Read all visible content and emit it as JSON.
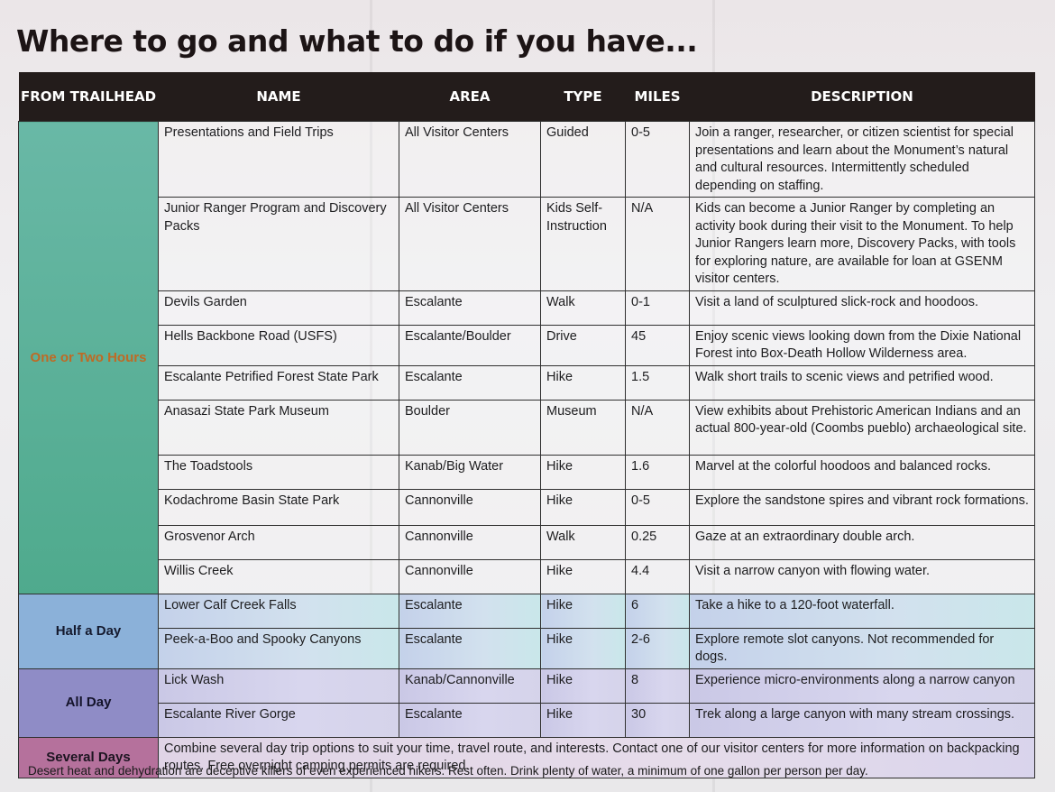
{
  "title": "Where to go and what to do if you have...",
  "headers": {
    "from_trailhead": "FROM TRAILHEAD",
    "name": "NAME",
    "area": "AREA",
    "type": "TYPE",
    "miles": "MILES",
    "description": "DESCRIPTION"
  },
  "groups": {
    "one_or_two_hours": "One or Two Hours",
    "half_a_day": "Half a Day",
    "all_day": "All Day",
    "several_days": "Several Days"
  },
  "rows": [
    {
      "name": "Presentations and Field Trips",
      "area": "All Visitor Centers",
      "type": "Guided",
      "miles": "0-5",
      "description": "Join a ranger, researcher, or citizen scientist for special presentations and learn about the Monument’s natural and cultural resources. Intermittently scheduled depending on staffing."
    },
    {
      "name": "Junior Ranger Program and Discovery Packs",
      "area": "All Visitor Centers",
      "type": "Kids Self-Instruction",
      "miles": "N/A",
      "description": "Kids can become a Junior Ranger by completing an activity book during their visit to the Monument. To help Junior Rangers learn more, Discovery Packs, with tools for exploring nature, are available for loan at GSENM visitor centers."
    },
    {
      "name": "Devils Garden",
      "area": "Escalante",
      "type": "Walk",
      "miles": "0-1",
      "description": "Visit a land of sculptured slick-rock and hoodoos."
    },
    {
      "name": "Hells Backbone Road (USFS)",
      "area": "Escalante/Boulder",
      "type": "Drive",
      "miles": "45",
      "description": "Enjoy scenic views looking down from the Dixie National Forest into Box-Death Hollow Wilderness area."
    },
    {
      "name": "Escalante Petrified Forest State Park",
      "area": "Escalante",
      "type": "Hike",
      "miles": "1.5",
      "description": "Walk short trails to scenic views and petrified wood."
    },
    {
      "name": "Anasazi State Park Museum",
      "area": "Boulder",
      "type": "Museum",
      "miles": "N/A",
      "description": "View exhibits about Prehistoric American Indians and an actual 800-year-old (Coombs pueblo) archaeological site."
    },
    {
      "name": "The Toadstools",
      "area": "Kanab/Big Water",
      "type": "Hike",
      "miles": "1.6",
      "description": "Marvel at the colorful hoodoos and balanced rocks."
    },
    {
      "name": "Kodachrome Basin State Park",
      "area": "Cannonville",
      "type": "Hike",
      "miles": "0-5",
      "description": "Explore the sandstone spires and vibrant rock formations."
    },
    {
      "name": "Grosvenor Arch",
      "area": "Cannonville",
      "type": "Walk",
      "miles": "0.25",
      "description": "Gaze at an extraordinary double arch."
    },
    {
      "name": "Willis Creek",
      "area": "Cannonville",
      "type": "Hike",
      "miles": "4.4",
      "description": "Visit a narrow canyon with flowing water."
    },
    {
      "name": "Lower Calf Creek Falls",
      "area": "Escalante",
      "type": "Hike",
      "miles": "6",
      "description": "Take a hike to a 120-foot waterfall."
    },
    {
      "name": "Peek-a-Boo and Spooky Canyons",
      "area": "Escalante",
      "type": "Hike",
      "miles": "2-6",
      "description": "Explore remote slot canyons. Not recommended for dogs."
    },
    {
      "name": "Lick Wash",
      "area": "Kanab/Cannonville",
      "type": "Hike",
      "miles": "8",
      "description": "Experience micro-environments along a narrow canyon"
    },
    {
      "name": "Escalante River Gorge",
      "area": "Escalante",
      "type": "Hike",
      "miles": "30",
      "description": "Trek along a large canyon with many stream crossings."
    }
  ],
  "several_days_text": "Combine several day trip options to suit your time, travel route, and interests. Contact one of our visitor centers for more information on backpacking routes. Free overnight camping permits are required.",
  "footer": "Desert heat and dehydration are deceptive killers of even experienced hikers. Rest often. Drink plenty of water, a minimum of one gallon per person per day."
}
